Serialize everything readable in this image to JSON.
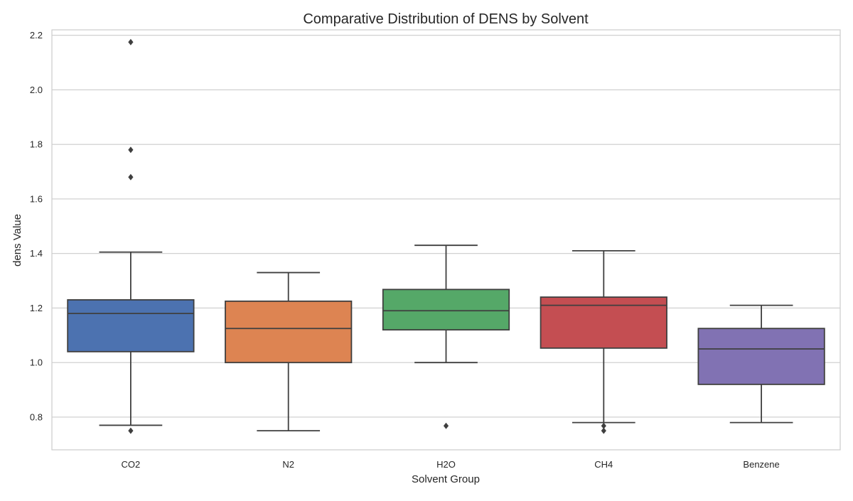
{
  "chart_data": {
    "type": "box",
    "title": "Comparative Distribution of DENS by Solvent",
    "xlabel": "Solvent Group",
    "ylabel": "dens Value",
    "ylim": [
      0.68,
      2.22
    ],
    "yticks": [
      0.8,
      1.0,
      1.2,
      1.4,
      1.6,
      1.8,
      2.0,
      2.2
    ],
    "ytick_labels": [
      "0.8",
      "1.0",
      "1.2",
      "1.4",
      "1.6",
      "1.8",
      "2.0",
      "2.2"
    ],
    "grid": true,
    "categories": [
      "CO2",
      "N2",
      "H2O",
      "CH4",
      "Benzene"
    ],
    "boxes": [
      {
        "category": "CO2",
        "color": "#4c72b0",
        "whisker_low": 0.77,
        "q1": 1.04,
        "median": 1.18,
        "q3": 1.23,
        "whisker_high": 1.405,
        "outliers": [
          2.175,
          1.78,
          1.68,
          0.75
        ]
      },
      {
        "category": "N2",
        "color": "#dd8452",
        "whisker_low": 0.75,
        "q1": 1.0,
        "median": 1.125,
        "q3": 1.225,
        "whisker_high": 1.33,
        "outliers": []
      },
      {
        "category": "H2O",
        "color": "#55a868",
        "whisker_low": 1.0,
        "q1": 1.12,
        "median": 1.19,
        "q3": 1.268,
        "whisker_high": 1.43,
        "outliers": [
          0.768
        ]
      },
      {
        "category": "CH4",
        "color": "#c44e52",
        "whisker_low": 0.78,
        "q1": 1.053,
        "median": 1.21,
        "q3": 1.24,
        "whisker_high": 1.41,
        "outliers": [
          0.768,
          0.75
        ]
      },
      {
        "category": "Benzene",
        "color": "#8172b3",
        "whisker_low": 0.78,
        "q1": 0.92,
        "median": 1.05,
        "q3": 1.125,
        "whisker_high": 1.21,
        "outliers": []
      }
    ]
  }
}
